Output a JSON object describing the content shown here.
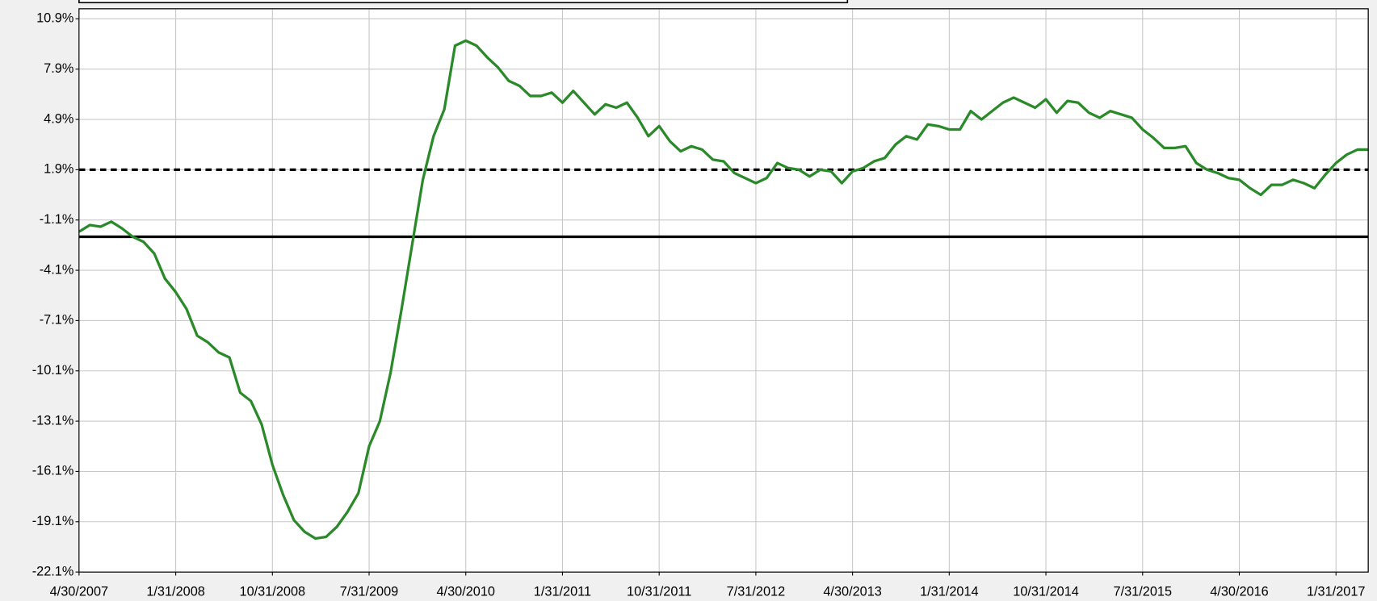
{
  "chart_data": {
    "type": "line",
    "x": [
      "4/30/2007",
      "5/31/2007",
      "6/30/2007",
      "7/31/2007",
      "8/31/2007",
      "9/30/2007",
      "10/31/2007",
      "11/30/2007",
      "12/31/2007",
      "1/31/2008",
      "2/29/2008",
      "3/31/2008",
      "4/30/2008",
      "5/31/2008",
      "6/30/2008",
      "7/31/2008",
      "8/31/2008",
      "9/30/2008",
      "10/31/2008",
      "11/30/2008",
      "12/31/2008",
      "1/31/2009",
      "2/28/2009",
      "3/31/2009",
      "4/30/2009",
      "5/31/2009",
      "6/30/2009",
      "7/31/2009",
      "8/31/2009",
      "9/30/2009",
      "10/31/2009",
      "11/30/2009",
      "12/31/2009",
      "1/31/2010",
      "2/28/2010",
      "3/31/2010",
      "4/30/2010",
      "5/31/2010",
      "6/30/2010",
      "7/31/2010",
      "8/31/2010",
      "9/30/2010",
      "10/31/2010",
      "11/30/2010",
      "12/31/2010",
      "1/31/2011",
      "2/28/2011",
      "3/31/2011",
      "4/30/2011",
      "5/31/2011",
      "6/30/2011",
      "7/31/2011",
      "8/31/2011",
      "9/30/2011",
      "10/31/2011",
      "11/30/2011",
      "12/31/2011",
      "1/31/2012",
      "2/29/2012",
      "3/31/2012",
      "4/30/2012",
      "5/31/2012",
      "6/30/2012",
      "7/31/2012",
      "8/31/2012",
      "9/30/2012",
      "10/31/2012",
      "11/30/2012",
      "12/31/2012",
      "1/31/2013",
      "2/28/2013",
      "3/31/2013",
      "4/30/2013",
      "5/31/2013",
      "6/30/2013",
      "7/31/2013",
      "8/31/2013",
      "9/30/2013",
      "10/31/2013",
      "11/30/2013",
      "12/31/2013",
      "1/31/2014",
      "2/28/2014",
      "3/31/2014",
      "4/30/2014",
      "5/31/2014",
      "6/30/2014",
      "7/31/2014",
      "8/31/2014",
      "9/30/2014",
      "10/31/2014",
      "11/30/2014",
      "12/31/2014",
      "1/31/2015",
      "2/28/2015",
      "3/31/2015",
      "4/30/2015",
      "5/31/2015",
      "6/30/2015",
      "7/31/2015",
      "8/31/2015",
      "9/30/2015",
      "10/31/2015",
      "11/30/2015",
      "12/31/2015",
      "1/31/2016",
      "2/29/2016",
      "3/31/2016",
      "4/30/2016",
      "5/31/2016",
      "6/30/2016",
      "7/31/2016",
      "8/31/2016",
      "9/30/2016",
      "10/31/2016",
      "11/30/2016",
      "12/31/2016",
      "1/31/2017",
      "2/28/2017",
      "3/31/2017",
      "4/30/2017"
    ],
    "series": [
      {
        "color": "#2a8a2a",
        "values": [
          -1.8,
          -1.4,
          -1.5,
          -1.2,
          -1.6,
          -2.1,
          -2.4,
          -3.1,
          -4.6,
          -5.4,
          -6.4,
          -8.0,
          -8.4,
          -9.0,
          -9.3,
          -11.4,
          -11.9,
          -13.3,
          -15.7,
          -17.5,
          -19.0,
          -19.7,
          -20.1,
          -20.0,
          -19.4,
          -18.5,
          -17.4,
          -14.6,
          -13.1,
          -10.2,
          -6.5,
          -2.6,
          1.3,
          3.9,
          5.5,
          9.3,
          9.6,
          9.3,
          8.6,
          8.0,
          7.2,
          6.9,
          6.3,
          6.3,
          6.5,
          5.9,
          6.6,
          5.9,
          5.2,
          5.8,
          5.6,
          5.9,
          5.0,
          3.9,
          4.5,
          3.6,
          3.0,
          3.3,
          3.1,
          2.5,
          2.4,
          1.7,
          1.4,
          1.1,
          1.4,
          2.3,
          2.0,
          1.9,
          1.5,
          1.9,
          1.8,
          1.1,
          1.8,
          2.0,
          2.4,
          2.6,
          3.4,
          3.9,
          3.7,
          4.6,
          4.5,
          4.3,
          4.3,
          5.4,
          4.9,
          5.4,
          5.9,
          6.2,
          5.9,
          5.6,
          6.1,
          5.3,
          6.0,
          5.9,
          5.3,
          5.0,
          5.4,
          5.2,
          5.0,
          4.3,
          3.8,
          3.2,
          3.2,
          3.3,
          2.3,
          1.9,
          1.7,
          1.4,
          1.3,
          0.8,
          0.4,
          1.0,
          1.0,
          1.3,
          1.1,
          0.8,
          1.6,
          2.3,
          2.8,
          3.1,
          3.1
        ]
      }
    ],
    "reference_lines": [
      {
        "value": 1.9,
        "style": "dashed"
      },
      {
        "value": -2.1,
        "style": "solid"
      }
    ],
    "xlim": [
      "4/30/2007",
      "4/30/2017"
    ],
    "xticks": [
      "4/30/2007",
      "1/31/2008",
      "10/31/2008",
      "7/31/2009",
      "4/30/2010",
      "1/31/2011",
      "10/31/2011",
      "7/31/2012",
      "4/30/2013",
      "1/31/2014",
      "10/31/2014",
      "7/31/2015",
      "4/30/2016",
      "1/31/2017"
    ],
    "ylim": [
      -22.1,
      11.5
    ],
    "yticks": [
      {
        "value": 10.9,
        "label": "10.9%"
      },
      {
        "value": 7.9,
        "label": "7.9%"
      },
      {
        "value": 4.9,
        "label": "4.9%"
      },
      {
        "value": 1.9,
        "label": "1.9%"
      },
      {
        "value": -1.1,
        "label": "-1.1%"
      },
      {
        "value": -4.1,
        "label": "-4.1%"
      },
      {
        "value": -7.1,
        "label": "-7.1%"
      },
      {
        "value": -10.1,
        "label": "-10.1%"
      },
      {
        "value": -13.1,
        "label": "-13.1%"
      },
      {
        "value": -16.1,
        "label": "-16.1%"
      },
      {
        "value": -19.1,
        "label": "-19.1%"
      },
      {
        "value": -22.1,
        "label": "-22.1%"
      }
    ],
    "grid": true
  }
}
